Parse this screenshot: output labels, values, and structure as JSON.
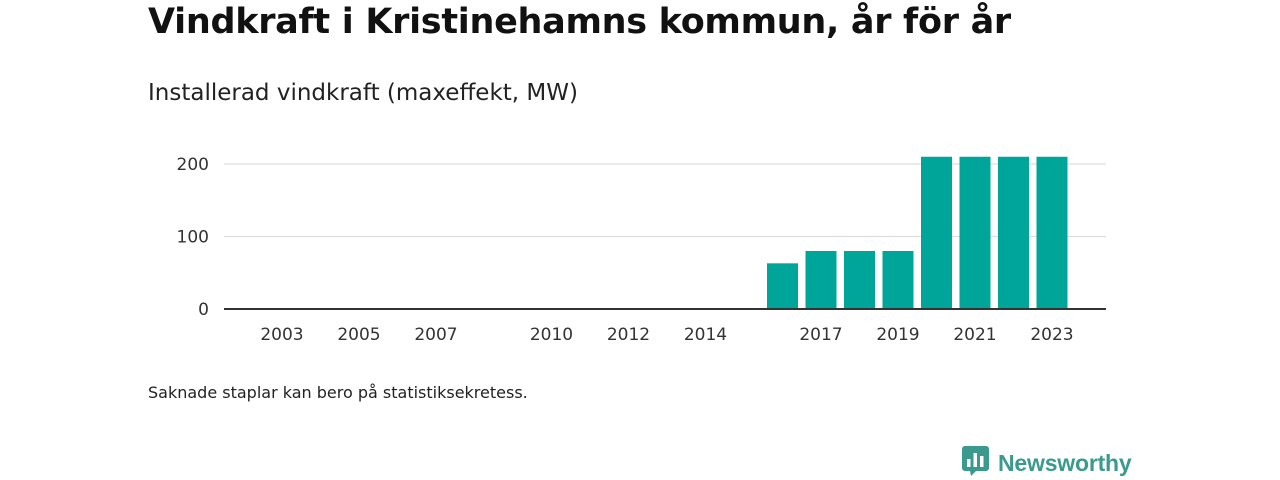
{
  "title": "Vindkraft i Kristinehamns kommun, år för år",
  "subtitle": "Installerad vindkraft (maxeffekt, MW)",
  "footnote": "Saknade staplar kan bero på statistiksekretess.",
  "brand": {
    "name": "Newsworthy",
    "logo_icon": "newsworthy-logo-icon",
    "color": "#3a9a8e"
  },
  "colors": {
    "bar": "#00a59a",
    "grid": "#dddddd",
    "axis": "#333333"
  },
  "chart_data": {
    "type": "bar",
    "title": "Vindkraft i Kristinehamns kommun, år för år",
    "subtitle": "Installerad vindkraft (maxeffekt, MW)",
    "xlabel": "",
    "ylabel": "",
    "categories": [
      2002,
      2003,
      2004,
      2005,
      2006,
      2007,
      2008,
      2009,
      2010,
      2011,
      2012,
      2013,
      2014,
      2015,
      2016,
      2017,
      2018,
      2019,
      2020,
      2021,
      2022,
      2023
    ],
    "values": [
      0,
      0,
      0,
      0,
      0,
      0,
      null,
      null,
      0,
      0,
      0,
      0,
      0,
      null,
      63,
      80,
      80,
      80,
      210,
      210,
      210,
      210
    ],
    "x_tick_labels": [
      "2003",
      "2005",
      "2007",
      "2010",
      "2012",
      "2014",
      "2017",
      "2019",
      "2021",
      "2023"
    ],
    "y_ticks": [
      0,
      100,
      200
    ],
    "ylim": [
      0,
      210
    ],
    "grid": true
  }
}
